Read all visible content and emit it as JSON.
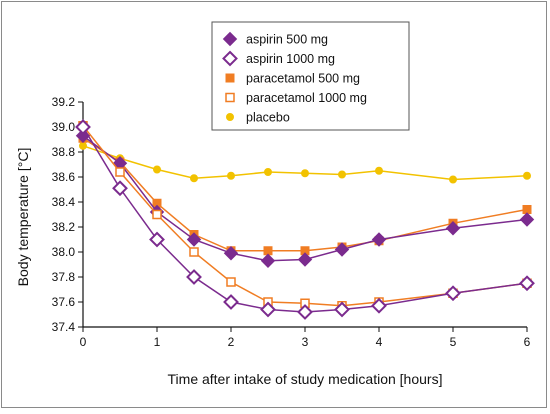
{
  "chart_data": {
    "type": "line",
    "xlabel": "Time after intake of study medication [hours]",
    "ylabel": "Body temperature [°C]",
    "xlim": [
      0,
      6
    ],
    "ylim": [
      37.4,
      39.2
    ],
    "x_ticks": [
      "0",
      "1",
      "2",
      "3",
      "4",
      "5",
      "6"
    ],
    "y_ticks": [
      "37.4",
      "37.6",
      "37.8",
      "38.0",
      "38.2",
      "38.4",
      "38.6",
      "38.8",
      "39.0",
      "39.2"
    ],
    "grid": false,
    "legend_position": "top-center",
    "series": [
      {
        "name": "aspirin 500 mg",
        "marker": "diamond-filled",
        "color": "#7b2b8e",
        "x": [
          0,
          0.5,
          1,
          1.5,
          2,
          2.5,
          3,
          3.5,
          4,
          5,
          6
        ],
        "values": [
          38.93,
          38.71,
          38.32,
          38.1,
          37.99,
          37.93,
          37.94,
          38.02,
          38.1,
          38.19,
          38.26
        ]
      },
      {
        "name": "aspirin 1000 mg",
        "marker": "diamond-open",
        "color": "#7b2b8e",
        "x": [
          0,
          0.5,
          1,
          1.5,
          2,
          2.5,
          3,
          3.5,
          4,
          5,
          6
        ],
        "values": [
          39.0,
          38.51,
          38.1,
          37.8,
          37.6,
          37.54,
          37.52,
          37.54,
          37.57,
          37.67,
          37.75
        ]
      },
      {
        "name": "paracetamol 500 mg",
        "marker": "square-filled",
        "color": "#f07d23",
        "x": [
          0,
          0.5,
          1,
          1.5,
          2,
          2.5,
          3,
          3.5,
          4,
          5,
          6
        ],
        "values": [
          38.91,
          38.72,
          38.39,
          38.14,
          38.01,
          38.01,
          38.01,
          38.04,
          38.09,
          38.23,
          38.34
        ]
      },
      {
        "name": "paracetamol 1000 mg",
        "marker": "square-open",
        "color": "#f07d23",
        "x": [
          0,
          0.5,
          1,
          1.5,
          2,
          2.5,
          3,
          3.5,
          4,
          5,
          6
        ],
        "values": [
          39.01,
          38.64,
          38.3,
          38.0,
          37.76,
          37.6,
          37.59,
          37.57,
          37.6,
          37.67,
          37.75
        ]
      },
      {
        "name": "placebo",
        "marker": "circle-filled",
        "color": "#f2c200",
        "x": [
          0,
          0.5,
          1,
          1.5,
          2,
          2.5,
          3,
          3.5,
          4,
          5,
          6
        ],
        "values": [
          38.85,
          38.75,
          38.66,
          38.59,
          38.61,
          38.64,
          38.63,
          38.62,
          38.65,
          38.58,
          38.61
        ]
      }
    ]
  }
}
